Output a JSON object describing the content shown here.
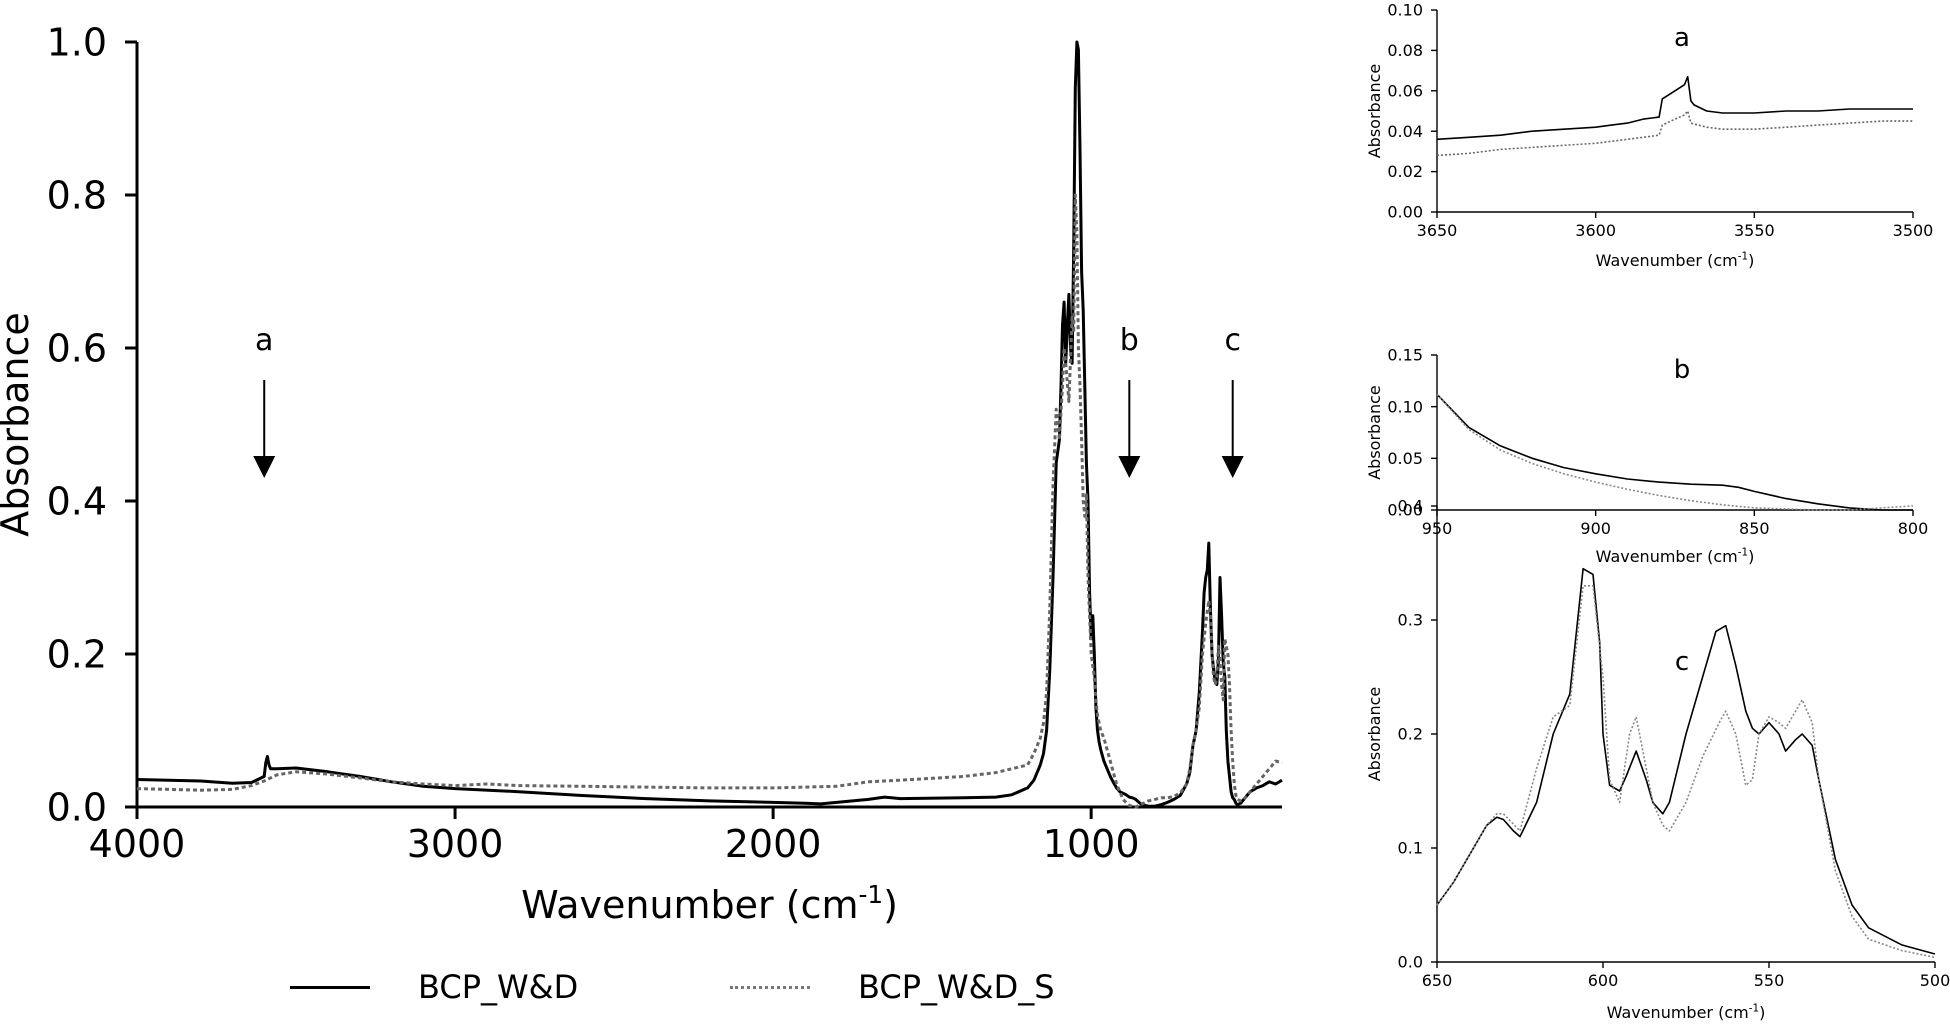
{
  "chart_data": [
    {
      "type": "line",
      "id": "main",
      "xlabel": "Wavenumber (cm",
      "xlabel_sup": "-1",
      "xlabel_tail": ")",
      "ylabel": "Absorbance",
      "xlim": [
        4000,
        400
      ],
      "ylim": [
        0,
        1.0
      ],
      "x_ticks": [
        "4000",
        "3000",
        "2000",
        "1000"
      ],
      "y_ticks": [
        "0.0",
        "0.2",
        "0.4",
        "0.6",
        "0.8",
        "1.0"
      ],
      "grid": false,
      "annotations": [
        {
          "label": "a",
          "x": 3600,
          "arrow": true
        },
        {
          "label": "b",
          "x": 880,
          "arrow": true
        },
        {
          "label": "c",
          "x": 555,
          "arrow": true
        }
      ],
      "series": [
        {
          "name": "BCP_W&D",
          "style": "solid",
          "color": "#000000",
          "x": [
            4000,
            3800,
            3700,
            3640,
            3620,
            3600,
            3595,
            3590,
            3585,
            3580,
            3560,
            3500,
            3400,
            3300,
            3200,
            3100,
            3000,
            2800,
            2600,
            2400,
            2200,
            2000,
            1900,
            1850,
            1800,
            1700,
            1650,
            1600,
            1400,
            1300,
            1250,
            1200,
            1180,
            1160,
            1150,
            1140,
            1130,
            1120,
            1110,
            1100,
            1095,
            1090,
            1085,
            1080,
            1075,
            1070,
            1065,
            1060,
            1055,
            1050,
            1045,
            1040,
            1035,
            1030,
            1025,
            1020,
            1015,
            1010,
            1005,
            1000,
            995,
            990,
            985,
            980,
            975,
            970,
            960,
            950,
            940,
            930,
            920,
            910,
            900,
            890,
            880,
            870,
            860,
            850,
            840,
            820,
            800,
            780,
            760,
            740,
            720,
            700,
            690,
            680,
            670,
            660,
            650,
            645,
            640,
            635,
            630,
            625,
            620,
            615,
            610,
            605,
            600,
            595,
            590,
            585,
            580,
            575,
            570,
            565,
            560,
            555,
            550,
            545,
            540,
            530,
            520,
            510,
            500,
            480,
            460,
            440,
            420,
            400
          ],
          "y": [
            0.036,
            0.034,
            0.031,
            0.032,
            0.036,
            0.04,
            0.058,
            0.066,
            0.055,
            0.05,
            0.05,
            0.051,
            0.046,
            0.04,
            0.033,
            0.027,
            0.024,
            0.02,
            0.015,
            0.011,
            0.008,
            0.006,
            0.005,
            0.004,
            0.006,
            0.01,
            0.013,
            0.011,
            0.012,
            0.013,
            0.016,
            0.025,
            0.035,
            0.055,
            0.07,
            0.1,
            0.18,
            0.3,
            0.45,
            0.48,
            0.55,
            0.63,
            0.66,
            0.58,
            0.63,
            0.67,
            0.6,
            0.58,
            0.73,
            0.94,
            1.0,
            0.99,
            0.86,
            0.7,
            0.65,
            0.55,
            0.45,
            0.4,
            0.28,
            0.22,
            0.25,
            0.2,
            0.13,
            0.1,
            0.085,
            0.075,
            0.06,
            0.05,
            0.04,
            0.032,
            0.025,
            0.02,
            0.018,
            0.016,
            0.013,
            0.012,
            0.01,
            0.006,
            0.003,
            0.001,
            0.001,
            0.003,
            0.006,
            0.01,
            0.015,
            0.03,
            0.045,
            0.08,
            0.1,
            0.15,
            0.23,
            0.28,
            0.3,
            0.31,
            0.345,
            0.26,
            0.2,
            0.18,
            0.165,
            0.16,
            0.19,
            0.3,
            0.25,
            0.19,
            0.17,
            0.1,
            0.06,
            0.04,
            0.02,
            0.012,
            0.01,
            0.005,
            0.003,
            0.005,
            0.01,
            0.015,
            0.02,
            0.025,
            0.028,
            0.033,
            0.03,
            0.035
          ]
        },
        {
          "name": "BCP_W&D_S",
          "style": "dotted",
          "color": "#666666",
          "x": [
            4000,
            3800,
            3700,
            3640,
            3600,
            3580,
            3560,
            3500,
            3400,
            3300,
            3200,
            3100,
            3000,
            2900,
            2800,
            2600,
            2400,
            2200,
            2000,
            1800,
            1700,
            1600,
            1400,
            1300,
            1250,
            1200,
            1180,
            1160,
            1150,
            1140,
            1130,
            1120,
            1110,
            1100,
            1090,
            1085,
            1080,
            1070,
            1060,
            1055,
            1050,
            1045,
            1040,
            1035,
            1030,
            1025,
            1020,
            1015,
            1010,
            1000,
            990,
            985,
            980,
            970,
            960,
            950,
            940,
            930,
            920,
            900,
            880,
            860,
            840,
            820,
            800,
            780,
            760,
            740,
            720,
            700,
            690,
            680,
            670,
            660,
            650,
            640,
            630,
            625,
            620,
            615,
            610,
            605,
            600,
            595,
            590,
            585,
            580,
            575,
            570,
            565,
            560,
            555,
            550,
            545,
            540,
            530,
            520,
            510,
            500,
            480,
            460,
            440,
            420,
            400
          ],
          "y": [
            0.024,
            0.022,
            0.023,
            0.028,
            0.034,
            0.038,
            0.042,
            0.046,
            0.043,
            0.038,
            0.033,
            0.03,
            0.028,
            0.03,
            0.028,
            0.027,
            0.026,
            0.025,
            0.025,
            0.027,
            0.033,
            0.035,
            0.04,
            0.045,
            0.05,
            0.055,
            0.07,
            0.09,
            0.11,
            0.15,
            0.26,
            0.42,
            0.52,
            0.48,
            0.55,
            0.6,
            0.58,
            0.53,
            0.64,
            0.62,
            0.8,
            0.75,
            0.6,
            0.55,
            0.48,
            0.4,
            0.38,
            0.41,
            0.3,
            0.2,
            0.17,
            0.14,
            0.12,
            0.1,
            0.09,
            0.075,
            0.06,
            0.045,
            0.03,
            0.01,
            0.002,
            0.0,
            0.004,
            0.008,
            0.01,
            0.012,
            0.012,
            0.014,
            0.018,
            0.03,
            0.05,
            0.08,
            0.1,
            0.13,
            0.2,
            0.24,
            0.27,
            0.25,
            0.2,
            0.17,
            0.16,
            0.17,
            0.21,
            0.19,
            0.16,
            0.14,
            0.22,
            0.21,
            0.2,
            0.16,
            0.1,
            0.06,
            0.03,
            0.015,
            0.01,
            0.008,
            0.01,
            0.015,
            0.02,
            0.03,
            0.04,
            0.05,
            0.06,
            0.058
          ]
        }
      ],
      "legend_position": "bottom"
    },
    {
      "type": "line",
      "id": "inset-a",
      "title": "a",
      "xlabel": "Wavenumber (cm",
      "xlabel_sup": "-1",
      "xlabel_tail": ")",
      "ylabel": "Absorbance",
      "xlim": [
        3650,
        3500
      ],
      "ylim": [
        0,
        0.1
      ],
      "x_ticks": [
        "3650",
        "3600",
        "3550",
        "3500"
      ],
      "y_ticks": [
        "0.00",
        "0.02",
        "0.04",
        "0.06",
        "0.08",
        "0.10"
      ],
      "series": [
        {
          "name": "BCP_W&D",
          "style": "solid",
          "color": "#000000",
          "x": [
            3650,
            3640,
            3630,
            3620,
            3610,
            3600,
            3595,
            3590,
            3585,
            3580,
            3579,
            3575,
            3572,
            3571,
            3570,
            3569,
            3565,
            3560,
            3550,
            3540,
            3530,
            3520,
            3510,
            3500
          ],
          "y": [
            0.036,
            0.037,
            0.038,
            0.04,
            0.041,
            0.042,
            0.043,
            0.044,
            0.046,
            0.047,
            0.056,
            0.06,
            0.063,
            0.067,
            0.055,
            0.053,
            0.05,
            0.049,
            0.049,
            0.05,
            0.05,
            0.051,
            0.051,
            0.051
          ]
        },
        {
          "name": "BCP_W&D_S",
          "style": "dotted",
          "color": "#666666",
          "x": [
            3650,
            3640,
            3630,
            3620,
            3610,
            3600,
            3590,
            3585,
            3580,
            3579,
            3575,
            3572,
            3571,
            3570,
            3565,
            3560,
            3550,
            3540,
            3530,
            3520,
            3510,
            3500
          ],
          "y": [
            0.028,
            0.029,
            0.031,
            0.032,
            0.033,
            0.034,
            0.036,
            0.037,
            0.038,
            0.043,
            0.046,
            0.048,
            0.05,
            0.044,
            0.042,
            0.041,
            0.041,
            0.042,
            0.043,
            0.044,
            0.045,
            0.045
          ]
        }
      ]
    },
    {
      "type": "line",
      "id": "inset-b",
      "title": "b",
      "xlabel": "Wavenumber (cm",
      "xlabel_sup": "-1",
      "xlabel_tail": ")",
      "ylabel": "Absorbance",
      "xlim": [
        950,
        800
      ],
      "ylim": [
        0,
        0.15
      ],
      "x_ticks": [
        "950",
        "900",
        "850",
        "800"
      ],
      "y_ticks": [
        "0.00",
        "0.05",
        "0.10",
        "0.15"
      ],
      "series": [
        {
          "name": "BCP_W&D",
          "style": "solid",
          "color": "#000000",
          "x": [
            950,
            940,
            930,
            920,
            910,
            900,
            890,
            880,
            870,
            860,
            855,
            850,
            840,
            830,
            820,
            810,
            800
          ],
          "y": [
            0.112,
            0.08,
            0.062,
            0.05,
            0.041,
            0.035,
            0.03,
            0.027,
            0.025,
            0.024,
            0.022,
            0.018,
            0.011,
            0.006,
            0.002,
            0.0,
            0.0
          ]
        },
        {
          "name": "BCP_W&D_S",
          "style": "dotted",
          "color": "#888888",
          "x": [
            950,
            940,
            930,
            920,
            910,
            900,
            890,
            880,
            870,
            860,
            850,
            840,
            830,
            820,
            810,
            800
          ],
          "y": [
            0.112,
            0.078,
            0.058,
            0.045,
            0.035,
            0.027,
            0.02,
            0.014,
            0.009,
            0.005,
            0.002,
            0.001,
            0.0,
            0.0,
            0.002,
            0.004
          ]
        }
      ]
    },
    {
      "type": "line",
      "id": "inset-c",
      "title": "c",
      "xlabel": "Wavenumber (cm",
      "xlabel_sup": "-1",
      "xlabel_tail": ")",
      "ylabel": "Absorbance",
      "xlim": [
        650,
        500
      ],
      "ylim": [
        0,
        0.4
      ],
      "x_ticks": [
        "650",
        "600",
        "550",
        "500"
      ],
      "y_ticks": [
        "0.0",
        "0.1",
        "0.2",
        "0.3",
        "0.4"
      ],
      "series": [
        {
          "name": "BCP_W&D",
          "style": "solid",
          "color": "#000000",
          "x": [
            650,
            645,
            640,
            635,
            632,
            630,
            627,
            625,
            620,
            615,
            610,
            606,
            603,
            601,
            600,
            598,
            595,
            593,
            590,
            587,
            585,
            582,
            580,
            575,
            570,
            566,
            563,
            560,
            557,
            555,
            553,
            550,
            547,
            545,
            542,
            540,
            537,
            535,
            530,
            525,
            520,
            510,
            500
          ],
          "y": [
            0.05,
            0.07,
            0.095,
            0.12,
            0.127,
            0.125,
            0.115,
            0.11,
            0.14,
            0.2,
            0.235,
            0.345,
            0.34,
            0.28,
            0.2,
            0.155,
            0.15,
            0.163,
            0.185,
            0.16,
            0.14,
            0.13,
            0.14,
            0.2,
            0.25,
            0.29,
            0.295,
            0.26,
            0.22,
            0.205,
            0.2,
            0.21,
            0.2,
            0.185,
            0.195,
            0.2,
            0.19,
            0.16,
            0.09,
            0.05,
            0.03,
            0.015,
            0.007
          ]
        },
        {
          "name": "BCP_W&D_S",
          "style": "dotted",
          "color": "#888888",
          "x": [
            650,
            645,
            640,
            635,
            632,
            630,
            625,
            620,
            615,
            610,
            606,
            603,
            600,
            598,
            595,
            592,
            590,
            587,
            585,
            582,
            580,
            575,
            570,
            565,
            563,
            560,
            557,
            555,
            553,
            550,
            547,
            545,
            542,
            540,
            537,
            535,
            530,
            525,
            520,
            510,
            500
          ],
          "y": [
            0.05,
            0.07,
            0.095,
            0.12,
            0.13,
            0.13,
            0.115,
            0.17,
            0.215,
            0.225,
            0.33,
            0.33,
            0.25,
            0.16,
            0.14,
            0.2,
            0.215,
            0.17,
            0.14,
            0.12,
            0.115,
            0.14,
            0.18,
            0.21,
            0.22,
            0.2,
            0.155,
            0.16,
            0.2,
            0.215,
            0.21,
            0.205,
            0.22,
            0.23,
            0.21,
            0.16,
            0.08,
            0.04,
            0.02,
            0.01,
            0.004
          ]
        }
      ]
    }
  ]
}
